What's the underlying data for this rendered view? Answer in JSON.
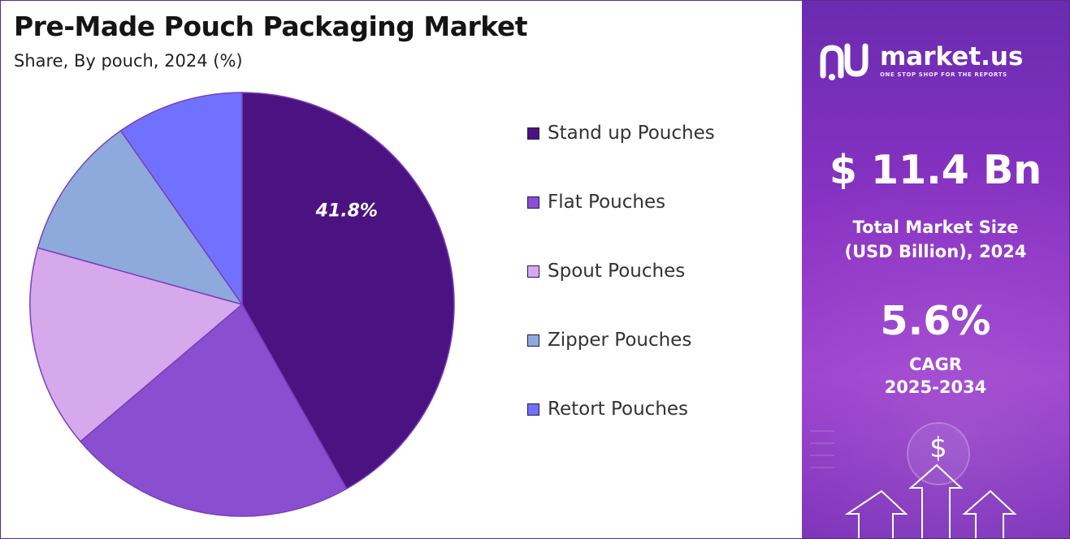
{
  "header": {
    "title": "Pre-Made Pouch Packaging Market",
    "subtitle": "Share, By pouch, 2024 (%)"
  },
  "chart_data": {
    "type": "pie",
    "title": "Pre-Made Pouch Packaging Market",
    "subtitle": "Share, By pouch, 2024 (%)",
    "categories": [
      "Stand up Pouches",
      "Flat Pouches",
      "Spout Pouches",
      "Zipper Pouches",
      "Retort Pouches"
    ],
    "values": [
      41.8,
      22.0,
      15.5,
      11.0,
      9.7
    ],
    "colors": [
      "#4b1382",
      "#8a4fd1",
      "#d6a8ec",
      "#8ea9db",
      "#7171ff"
    ],
    "data_labels": [
      "41.8%",
      "",
      "",
      "",
      ""
    ],
    "legend_position": "right"
  },
  "brand": {
    "name": "market.us",
    "tagline": "ONE STOP SHOP FOR THE REPORTS"
  },
  "stats": {
    "market_size_value": "$ 11.4 Bn",
    "market_size_label_line1": "Total Market Size",
    "market_size_label_line2": "(USD Billion), 2024",
    "cagr_value": "5.6%",
    "cagr_label_line1": "CAGR",
    "cagr_label_line2": "2025-2034"
  },
  "decor": {
    "dollar_symbol": "$"
  }
}
